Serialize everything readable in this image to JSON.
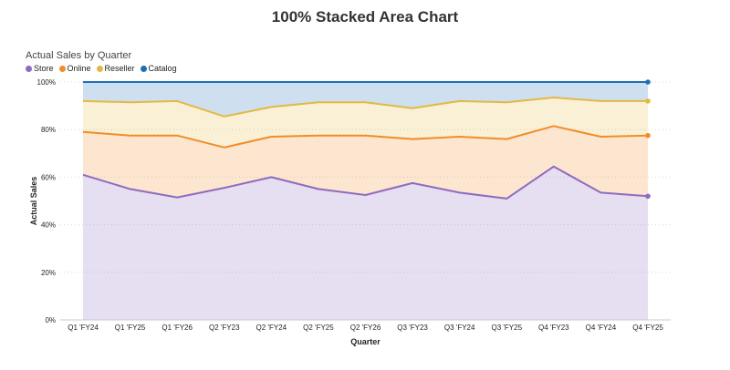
{
  "page_title": "100% Stacked Area Chart",
  "visual_title": "Actual Sales by Quarter",
  "colors": {
    "Store": "#8e6bbf",
    "Online": "#f28c28",
    "Reseller": "#e2b946",
    "Catalog": "#1f6fb4"
  },
  "chart_data": {
    "type": "area",
    "stacked": "100%",
    "title": "Actual Sales by Quarter",
    "xlabel": "Quarter",
    "ylabel": "Actual Sales",
    "ylim": [
      0,
      100
    ],
    "yticks": [
      "0%",
      "20%",
      "40%",
      "60%",
      "80%",
      "100%"
    ],
    "legend_position": "top-left",
    "grid": "horizontal dotted",
    "categories": [
      "Q1 'FY24",
      "Q1 'FY25",
      "Q1 'FY26",
      "Q2 'FY23",
      "Q2 'FY24",
      "Q2 'FY25",
      "Q2 'FY26",
      "Q3 'FY23",
      "Q3 'FY24",
      "Q3 'FY25",
      "Q4 'FY23",
      "Q4 'FY24",
      "Q4 'FY25"
    ],
    "series": [
      {
        "name": "Store",
        "cumulative": [
          61,
          55,
          51.5,
          55.5,
          60,
          55,
          52.5,
          57.5,
          53.5,
          51,
          64.5,
          53.5,
          52
        ]
      },
      {
        "name": "Online",
        "cumulative": [
          79,
          77.5,
          77.5,
          72.5,
          77,
          77.5,
          77.5,
          76,
          77,
          76,
          81.5,
          77,
          77.5
        ]
      },
      {
        "name": "Reseller",
        "cumulative": [
          92,
          91.5,
          92,
          85.5,
          89.5,
          91.5,
          91.5,
          89,
          92,
          91.5,
          93.5,
          92,
          92
        ]
      },
      {
        "name": "Catalog",
        "cumulative": [
          100,
          100,
          100,
          100,
          100,
          100,
          100,
          100,
          100,
          100,
          100,
          100,
          100
        ]
      }
    ]
  }
}
